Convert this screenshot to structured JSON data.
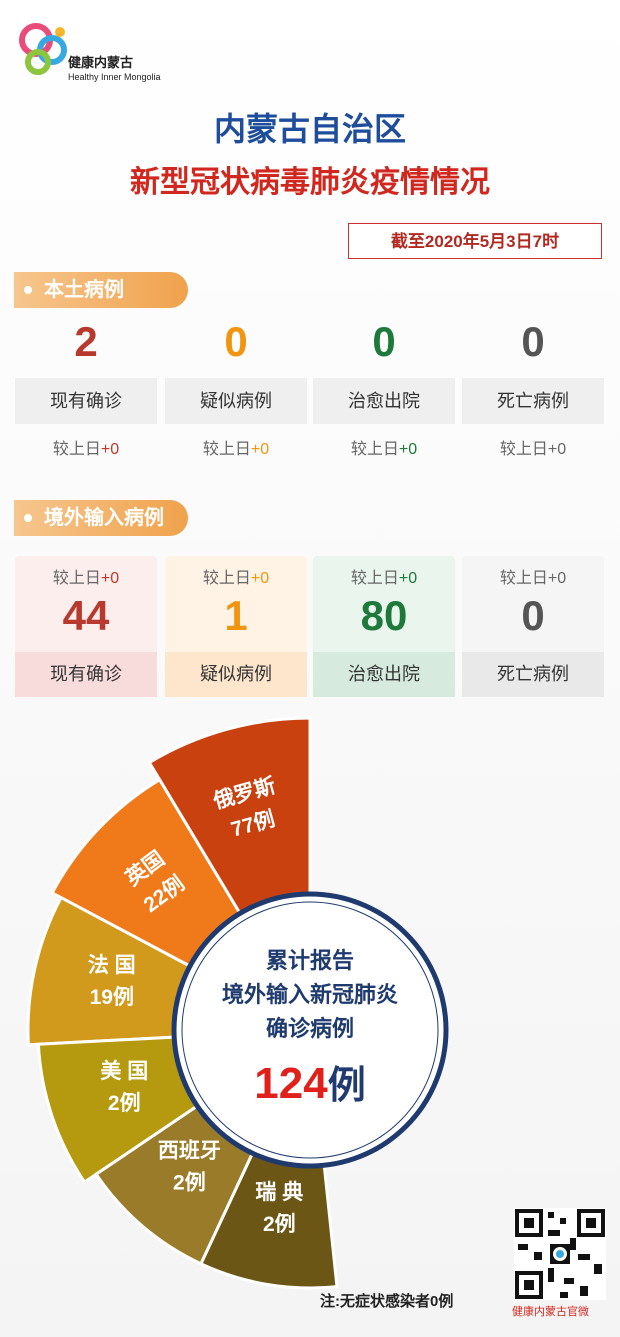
{
  "header": {
    "logo_cn": "健康内蒙古",
    "logo_en": "Healthy Inner Mongolia",
    "title": "内蒙古自治区",
    "subtitle": "新型冠状病毒肺炎疫情情况",
    "date": "截至2020年5月3日7时"
  },
  "local": {
    "label": "本土病例",
    "items": [
      {
        "value": 2,
        "name": "现有确诊",
        "change_prefix": "较上日",
        "change": "+0"
      },
      {
        "value": 0,
        "name": "疑似病例",
        "change_prefix": "较上日",
        "change": "+0"
      },
      {
        "value": 0,
        "name": "治愈出院",
        "change_prefix": "较上日",
        "change": "+0"
      },
      {
        "value": 0,
        "name": "死亡病例",
        "change_prefix": "较上日",
        "change": "+0"
      }
    ]
  },
  "imported": {
    "label": "境外输入病例",
    "items": [
      {
        "value": 44,
        "name": "现有确诊",
        "change_prefix": "较上日",
        "change": "+0"
      },
      {
        "value": 1,
        "name": "疑似病例",
        "change_prefix": "较上日",
        "change": "+0"
      },
      {
        "value": 80,
        "name": "治愈出院",
        "change_prefix": "较上日",
        "change": "+0"
      },
      {
        "value": 0,
        "name": "死亡病例",
        "change_prefix": "较上日",
        "change": "+0"
      }
    ]
  },
  "breakdown": {
    "center_lines": [
      "累计报告",
      "境外输入新冠肺炎",
      "确诊病例"
    ],
    "total": 124,
    "unit": "例",
    "sectors": [
      {
        "name": "俄罗斯",
        "count": "77例"
      },
      {
        "name": "英国",
        "count": "22例"
      },
      {
        "name": "法 国",
        "count": "19例"
      },
      {
        "name": "美 国",
        "count": "2例"
      },
      {
        "name": "西班牙",
        "count": "2例"
      },
      {
        "name": "瑞 典",
        "count": "2例"
      }
    ]
  },
  "footer": {
    "note": "注:无症状感染者0例",
    "watermark": "健康内蒙古官微"
  }
}
